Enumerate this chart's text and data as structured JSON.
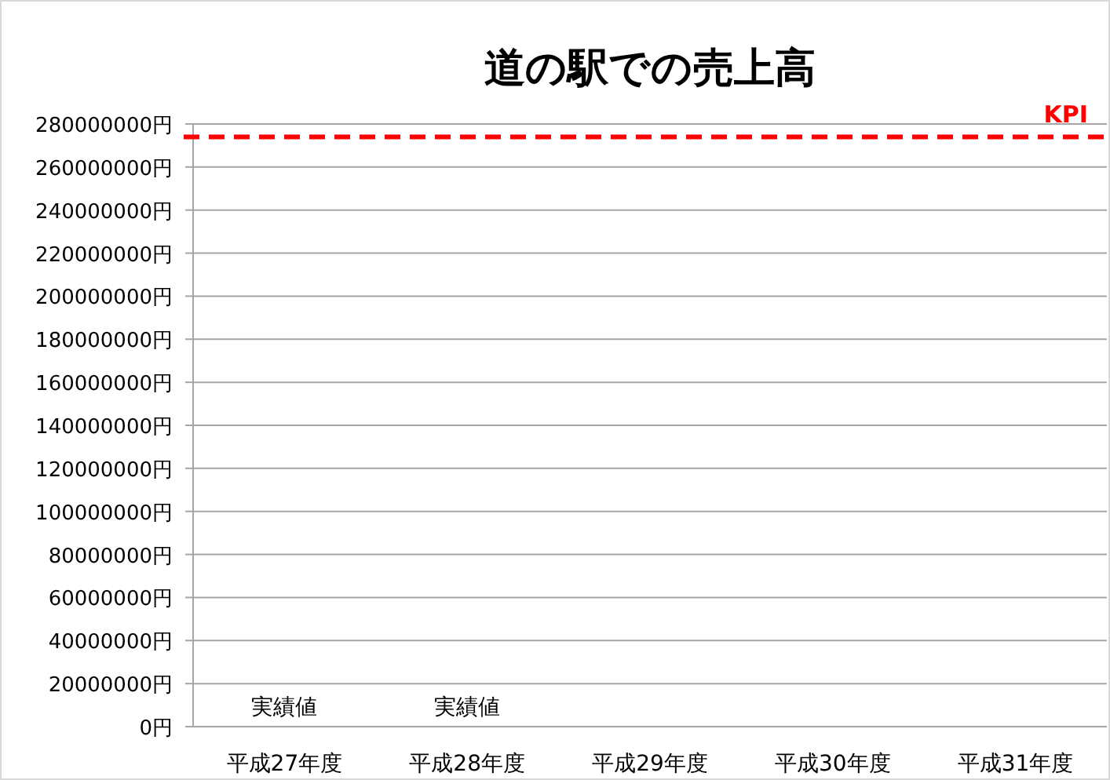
{
  "chart_data": {
    "type": "bar",
    "title": "道の駅での売上高",
    "categories": [
      "平成27年度",
      "平成28年度",
      "平成29年度",
      "平成30年度",
      "平成31年度"
    ],
    "values": [
      0,
      0,
      null,
      null,
      null
    ],
    "value_labels": [
      "実績値",
      "実績値",
      null,
      null,
      null
    ],
    "ylim": [
      0,
      280000000
    ],
    "yticks": [
      {
        "value": 0,
        "label": "0円"
      },
      {
        "value": 20000000,
        "label": "20000000円"
      },
      {
        "value": 40000000,
        "label": "40000000円"
      },
      {
        "value": 60000000,
        "label": "60000000円"
      },
      {
        "value": 80000000,
        "label": "80000000円"
      },
      {
        "value": 100000000,
        "label": "100000000円"
      },
      {
        "value": 120000000,
        "label": "120000000円"
      },
      {
        "value": 140000000,
        "label": "140000000円"
      },
      {
        "value": 160000000,
        "label": "160000000円"
      },
      {
        "value": 180000000,
        "label": "180000000円"
      },
      {
        "value": 200000000,
        "label": "200000000円"
      },
      {
        "value": 220000000,
        "label": "220000000円"
      },
      {
        "value": 240000000,
        "label": "240000000円"
      },
      {
        "value": 260000000,
        "label": "260000000円"
      },
      {
        "value": 280000000,
        "label": "280000000円"
      }
    ],
    "grid": "y",
    "ref_lines": [
      {
        "axis": "y",
        "value": 274000000,
        "label": "KPI",
        "color": "#ff0000",
        "line_style": "dashed"
      }
    ]
  }
}
